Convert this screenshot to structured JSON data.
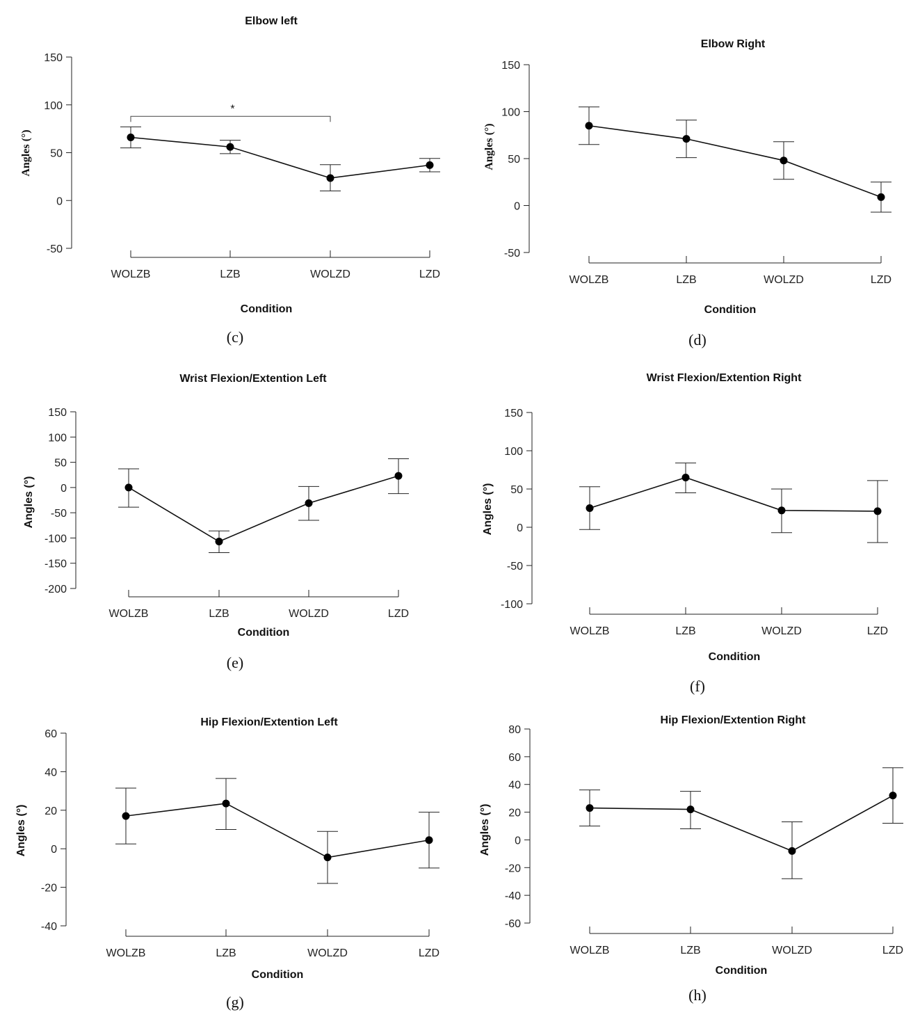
{
  "chart_data": [
    {
      "type": "line",
      "panel_label": "(c)",
      "title": "Elbow left",
      "xlabel": "Condition",
      "ylabel": "Angles (°)",
      "categories": [
        "WOLZB",
        "LZB",
        "WOLZD",
        "LZD"
      ],
      "values": [
        66,
        56,
        23.5,
        37
      ],
      "error_upper": [
        77,
        63,
        37.5,
        44
      ],
      "error_lower": [
        55,
        49,
        10,
        30
      ],
      "ylim": [
        -50,
        150
      ],
      "yticks": [
        150,
        100,
        50,
        0,
        -50
      ],
      "significance": {
        "from": "WOLZB",
        "to": "WOLZD",
        "label": "*",
        "y": 88
      },
      "grid": false
    },
    {
      "type": "line",
      "panel_label": "(d)",
      "title": "Elbow Right",
      "xlabel": "Condition",
      "ylabel": "Angles (°)",
      "categories": [
        "WOLZB",
        "LZB",
        "WOLZD",
        "LZD"
      ],
      "values": [
        85,
        71,
        48,
        9
      ],
      "error_upper": [
        105,
        91,
        68,
        25
      ],
      "error_lower": [
        65,
        51,
        28,
        -7
      ],
      "ylim": [
        -50,
        150
      ],
      "yticks": [
        150,
        100,
        50,
        0,
        -50
      ],
      "grid": false
    },
    {
      "type": "line",
      "panel_label": "(e)",
      "title": "Wrist Flexion/Extention Left",
      "xlabel": "Condition",
      "ylabel": "Angles (°)",
      "categories": [
        "WOLZB",
        "LZB",
        "WOLZD",
        "LZD"
      ],
      "values": [
        0,
        -107,
        -31,
        23
      ],
      "error_upper": [
        37,
        -86,
        2,
        57
      ],
      "error_lower": [
        -39,
        -129,
        -65,
        -12
      ],
      "ylim": [
        -200,
        150
      ],
      "yticks": [
        150,
        100,
        50,
        0,
        -50,
        -100,
        -150,
        -200
      ],
      "grid": false
    },
    {
      "type": "line",
      "panel_label": "(f)",
      "title": "Wrist Flexion/Extention Right",
      "xlabel": "Condition",
      "ylabel": "Angles (°)",
      "categories": [
        "WOLZB",
        "LZB",
        "WOLZD",
        "LZD"
      ],
      "values": [
        25,
        65,
        22,
        21
      ],
      "error_upper": [
        53,
        84,
        50,
        61
      ],
      "error_lower": [
        -3,
        45,
        -7,
        -20
      ],
      "ylim": [
        -100,
        150
      ],
      "yticks": [
        150,
        100,
        50,
        0,
        -50,
        -100
      ],
      "grid": false
    },
    {
      "type": "line",
      "panel_label": "(g)",
      "title": "Hip Flexion/Extention Left",
      "xlabel": "Condition",
      "ylabel": "Angles (°)",
      "categories": [
        "WOLZB",
        "LZB",
        "WOLZD",
        "LZD"
      ],
      "values": [
        17,
        23.5,
        -4.5,
        4.5
      ],
      "error_upper": [
        31.5,
        36.5,
        9,
        19
      ],
      "error_lower": [
        2.5,
        10,
        -18,
        -10
      ],
      "ylim": [
        -40,
        60
      ],
      "yticks": [
        60,
        40,
        20,
        0,
        -20,
        -40
      ],
      "grid": false
    },
    {
      "type": "line",
      "panel_label": "(h)",
      "title": "Hip Flexion/Extention Right",
      "xlabel": "Condition",
      "ylabel": "Angles (°)",
      "categories": [
        "WOLZB",
        "LZB",
        "WOLZD",
        "LZD"
      ],
      "values": [
        23,
        22,
        -8,
        32
      ],
      "error_upper": [
        36,
        35,
        13,
        52
      ],
      "error_lower": [
        10,
        8,
        -28,
        12
      ],
      "ylim": [
        -60,
        80
      ],
      "yticks": [
        80,
        60,
        40,
        20,
        0,
        -20,
        -40,
        -60
      ],
      "grid": false
    }
  ]
}
